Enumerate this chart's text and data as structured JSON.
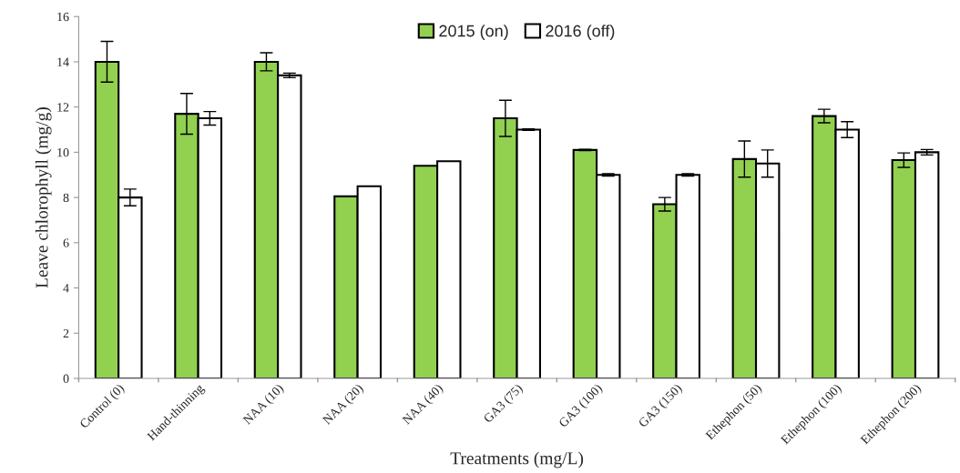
{
  "chart_data": {
    "type": "bar",
    "xlabel": "Treatments (mg/L)",
    "ylabel": "Leave chlorophyll (mg/g)",
    "categories": [
      "Control (0)",
      "Hand-thinning",
      "NAA (10)",
      "NAA (20)",
      "NAA (40)",
      "GA3 (75)",
      "GA3 (100)",
      "GA3 (150)",
      "Ethephon (50)",
      "Ethephon (100)",
      "Ethephon (200)"
    ],
    "series": [
      {
        "name": "2015 (on)",
        "color": "#92d050",
        "values": [
          14.0,
          11.7,
          14.0,
          8.05,
          9.4,
          11.5,
          10.1,
          7.7,
          9.7,
          11.6,
          9.65
        ],
        "errors": [
          0.9,
          0.9,
          0.4,
          null,
          null,
          0.8,
          0.03,
          0.3,
          0.8,
          0.3,
          0.32
        ]
      },
      {
        "name": "2016 (off)",
        "color": "#ffffff",
        "values": [
          8.0,
          11.5,
          13.4,
          8.5,
          9.6,
          11.0,
          9.0,
          9.0,
          9.5,
          11.0,
          10.0
        ],
        "errors": [
          0.37,
          0.3,
          0.1,
          null,
          null,
          0.03,
          0.05,
          0.05,
          0.6,
          0.35,
          0.12
        ]
      }
    ],
    "ylim": [
      0,
      16
    ],
    "yticks": [
      0,
      2,
      4,
      6,
      8,
      10,
      12,
      14,
      16
    ],
    "grid": false,
    "legend": "top"
  }
}
